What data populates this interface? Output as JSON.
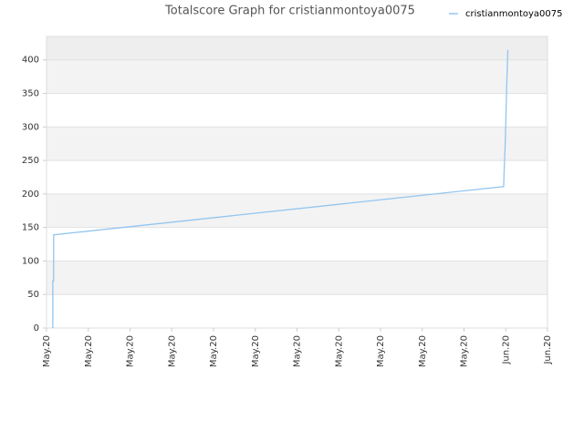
{
  "chart_data": {
    "type": "line",
    "title": "Totalscore Graph for cristianmontoya0075",
    "x": [
      0.15,
      0.15,
      0.17,
      0.17,
      10.95,
      10.96,
      10.99,
      11.02,
      11.05
    ],
    "series": [
      {
        "name": "cristianmontoya0075",
        "color": "#92c5f0",
        "values": [
          0,
          70,
          70,
          139,
          211,
          232,
          280,
          355,
          415
        ]
      }
    ],
    "xlim": [
      0,
      12
    ],
    "xticks": [
      {
        "value": 0,
        "label": "May.20"
      },
      {
        "value": 1,
        "label": "May.20"
      },
      {
        "value": 2,
        "label": "May.20"
      },
      {
        "value": 3,
        "label": "May.20"
      },
      {
        "value": 4,
        "label": "May.20"
      },
      {
        "value": 5,
        "label": "May.20"
      },
      {
        "value": 6,
        "label": "May.20"
      },
      {
        "value": 7,
        "label": "May.20"
      },
      {
        "value": 8,
        "label": "May.20"
      },
      {
        "value": 9,
        "label": "May.20"
      },
      {
        "value": 10,
        "label": "May.20"
      },
      {
        "value": 11,
        "label": "Jun.20"
      },
      {
        "value": 12,
        "label": "Jun.20"
      }
    ],
    "ylim": [
      0,
      435
    ],
    "yticks": [
      0,
      50,
      100,
      150,
      200,
      250,
      300,
      350,
      400
    ],
    "grid": true,
    "legend": "top-right"
  }
}
